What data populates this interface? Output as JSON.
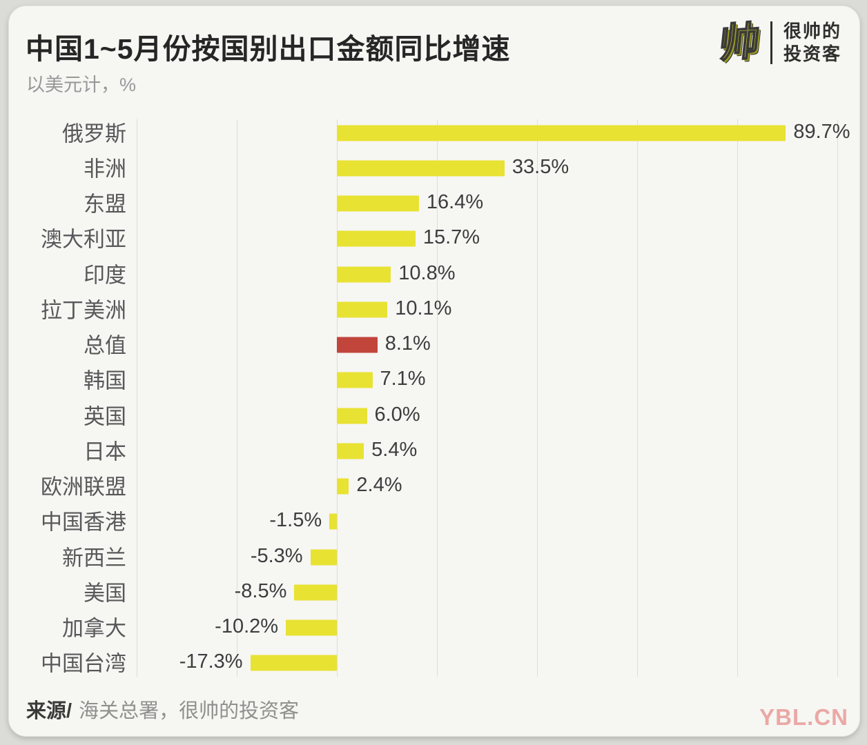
{
  "header": {
    "title": "中国1~5月份按国别出口金额同比增速",
    "subtitle": "以美元计，%"
  },
  "logo": {
    "icon_char": "帅",
    "name_line1": "很帅的",
    "name_line2": "投资客"
  },
  "footer": {
    "source_prefix": "来源/",
    "source_text": "海关总署，很帅的投资客",
    "watermark": "YBL.CN"
  },
  "colors": {
    "bar": "#e8e233",
    "highlight_bar": "#c2453c",
    "gridline": "#dddddb",
    "card_bg": "#f6f6f3"
  },
  "chart_data": {
    "type": "bar",
    "orientation": "horizontal",
    "title": "中国1~5月份按国别出口金额同比增速",
    "subtitle": "以美元计，%",
    "categories": [
      "俄罗斯",
      "非洲",
      "东盟",
      "澳大利亚",
      "印度",
      "拉丁美洲",
      "总值",
      "韩国",
      "英国",
      "日本",
      "欧洲联盟",
      "中国香港",
      "新西兰",
      "美国",
      "加拿大",
      "中国台湾"
    ],
    "values": [
      89.7,
      33.5,
      16.4,
      15.7,
      10.8,
      10.1,
      8.1,
      7.1,
      6.0,
      5.4,
      2.4,
      -1.5,
      -5.3,
      -8.5,
      -10.2,
      -17.3
    ],
    "value_labels": [
      "89.7%",
      "33.5%",
      "16.4%",
      "15.7%",
      "10.8%",
      "10.1%",
      "8.1%",
      "7.1%",
      "6.0%",
      "5.4%",
      "2.4%",
      "-1.5%",
      "-5.3%",
      "-8.5%",
      "-10.2%",
      "-17.3%"
    ],
    "highlight_category": "总值",
    "xlim": [
      -40,
      100
    ],
    "grid_step": 20,
    "grid": true,
    "legend": false,
    "xlabel": "",
    "ylabel": ""
  }
}
